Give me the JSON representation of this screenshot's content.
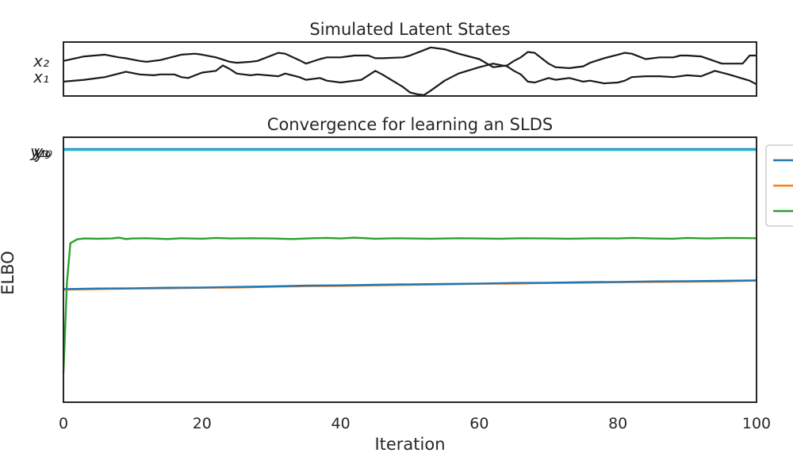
{
  "chart_data": [
    {
      "type": "line",
      "title": "Simulated Latent States",
      "xlabel": "",
      "ylabel": "",
      "ytick_labels": [
        "x₂",
        "x₁"
      ],
      "xlim": [
        0,
        100
      ],
      "ylim": [
        -3.0,
        3.0
      ],
      "grid": false,
      "series": [
        {
          "name": "x₂",
          "color": "#1a1a1a",
          "x": [
            0,
            3,
            6,
            8,
            9,
            11,
            12,
            14,
            15,
            17,
            19,
            20,
            22,
            24,
            25,
            27,
            28,
            31,
            32,
            34,
            35,
            37,
            38,
            40,
            41,
            42,
            44,
            45,
            46,
            49,
            50,
            52,
            53,
            55,
            57,
            60,
            62,
            64,
            65,
            66,
            67,
            68,
            70,
            71,
            73,
            75,
            76,
            78,
            80,
            81,
            82,
            84,
            86,
            88,
            89,
            90,
            92,
            95,
            98,
            99,
            100
          ],
          "values": [
            0.9,
            1.4,
            1.6,
            1.3,
            1.2,
            0.9,
            0.8,
            1.0,
            1.2,
            1.6,
            1.7,
            1.6,
            1.3,
            0.8,
            0.7,
            0.8,
            0.9,
            1.8,
            1.7,
            1.0,
            0.6,
            1.1,
            1.3,
            1.3,
            1.4,
            1.5,
            1.5,
            1.2,
            1.2,
            1.3,
            1.5,
            2.1,
            2.4,
            2.2,
            1.7,
            1.1,
            0.2,
            0.4,
            0.9,
            1.3,
            1.9,
            1.8,
            0.6,
            0.2,
            0.1,
            0.3,
            0.7,
            1.2,
            1.6,
            1.8,
            1.7,
            1.1,
            1.3,
            1.3,
            1.5,
            1.5,
            1.4,
            0.6,
            0.6,
            1.5,
            1.5
          ]
        },
        {
          "name": "x₁",
          "color": "#1a1a1a",
          "x": [
            0,
            3,
            6,
            8,
            9,
            11,
            13,
            14,
            15,
            16,
            17,
            18,
            19,
            20,
            22,
            23,
            24,
            25,
            26,
            27,
            28,
            31,
            32,
            34,
            35,
            37,
            38,
            40,
            41,
            43,
            45,
            46,
            49,
            50,
            51,
            52,
            53,
            55,
            57,
            60,
            62,
            64,
            65,
            66,
            67,
            68,
            70,
            71,
            73,
            75,
            76,
            78,
            80,
            81,
            82,
            84,
            86,
            88,
            90,
            92,
            94,
            96,
            99,
            100
          ],
          "values": [
            -1.4,
            -1.2,
            -0.9,
            -0.5,
            -0.3,
            -0.6,
            -0.7,
            -0.6,
            -0.6,
            -0.6,
            -0.9,
            -1.0,
            -0.7,
            -0.4,
            -0.2,
            0.4,
            0.0,
            -0.5,
            -0.6,
            -0.7,
            -0.6,
            -0.8,
            -0.5,
            -0.9,
            -1.2,
            -1.0,
            -1.3,
            -1.5,
            -1.4,
            -1.2,
            -0.2,
            -0.6,
            -2.0,
            -2.6,
            -2.8,
            -2.9,
            -2.4,
            -1.3,
            -0.5,
            0.2,
            0.6,
            0.3,
            -0.2,
            -0.6,
            -1.4,
            -1.5,
            -1.0,
            -1.2,
            -1.0,
            -1.4,
            -1.3,
            -1.6,
            -1.5,
            -1.3,
            -0.9,
            -0.8,
            -0.8,
            -0.9,
            -0.7,
            -0.8,
            -0.2,
            -0.6,
            -1.3,
            -1.7
          ]
        }
      ]
    },
    {
      "type": "line",
      "title": "Convergence for learning an SLDS",
      "xlabel": "Iteration",
      "ylabel": "ELBO",
      "xticks": [
        0,
        20,
        40,
        60,
        80,
        100
      ],
      "xtick_labels": [
        "0",
        "20",
        "40",
        "60",
        "80",
        "100"
      ],
      "ytick_labels": [
        "y₁",
        "y₉",
        "y₁₀"
      ],
      "xlim": [
        0,
        100
      ],
      "ylim": [
        0,
        100
      ],
      "grid": false,
      "legend_position": "upper right, outside plot area",
      "series": [
        {
          "color": "#1f77b4",
          "x": [
            0,
            100
          ],
          "values": [
            95.5,
            95.5
          ]
        },
        {
          "color": "#17becf",
          "x": [
            0,
            100
          ],
          "values": [
            95.2,
            95.2
          ]
        },
        {
          "color": "#2ca02c",
          "x": [
            0,
            0.5,
            1,
            2,
            3,
            5,
            7,
            8,
            9,
            10,
            12,
            15,
            17,
            20,
            22,
            24,
            27,
            30,
            33,
            36,
            38,
            40,
            42,
            45,
            48,
            50,
            53,
            57,
            60,
            63,
            66,
            70,
            73,
            77,
            80,
            82,
            85,
            88,
            90,
            93,
            96,
            100
          ],
          "values": [
            11,
            45,
            60,
            61.5,
            61.8,
            61.7,
            61.8,
            62.1,
            61.6,
            61.8,
            61.9,
            61.6,
            61.9,
            61.7,
            62.0,
            61.8,
            61.9,
            61.8,
            61.6,
            61.9,
            62.0,
            61.8,
            62.1,
            61.7,
            61.9,
            61.8,
            61.7,
            61.9,
            61.8,
            61.7,
            61.9,
            61.8,
            61.7,
            61.9,
            61.8,
            62.0,
            61.8,
            61.7,
            62.0,
            61.8,
            62.0,
            61.9
          ]
        },
        {
          "color": "#ff7f0e",
          "x": [
            0,
            5,
            10,
            15,
            20,
            25,
            30,
            35,
            40,
            45,
            50,
            55,
            60,
            65,
            70,
            75,
            80,
            85,
            90,
            95,
            100
          ],
          "values": [
            42.5,
            42.7,
            42.9,
            43.0,
            43.2,
            43.3,
            43.6,
            43.8,
            43.9,
            44.1,
            44.3,
            44.5,
            44.7,
            44.8,
            45.0,
            45.1,
            45.3,
            45.4,
            45.5,
            45.6,
            45.9
          ]
        },
        {
          "color": "#1f77b4",
          "x": [
            0,
            5,
            10,
            15,
            20,
            25,
            30,
            35,
            40,
            45,
            50,
            55,
            60,
            65,
            70,
            75,
            80,
            85,
            90,
            95,
            100
          ],
          "values": [
            42.7,
            42.9,
            43.0,
            43.2,
            43.3,
            43.5,
            43.7,
            44.0,
            44.1,
            44.3,
            44.5,
            44.6,
            44.8,
            45.0,
            45.1,
            45.3,
            45.4,
            45.6,
            45.7,
            45.8,
            46.0
          ]
        }
      ]
    }
  ]
}
